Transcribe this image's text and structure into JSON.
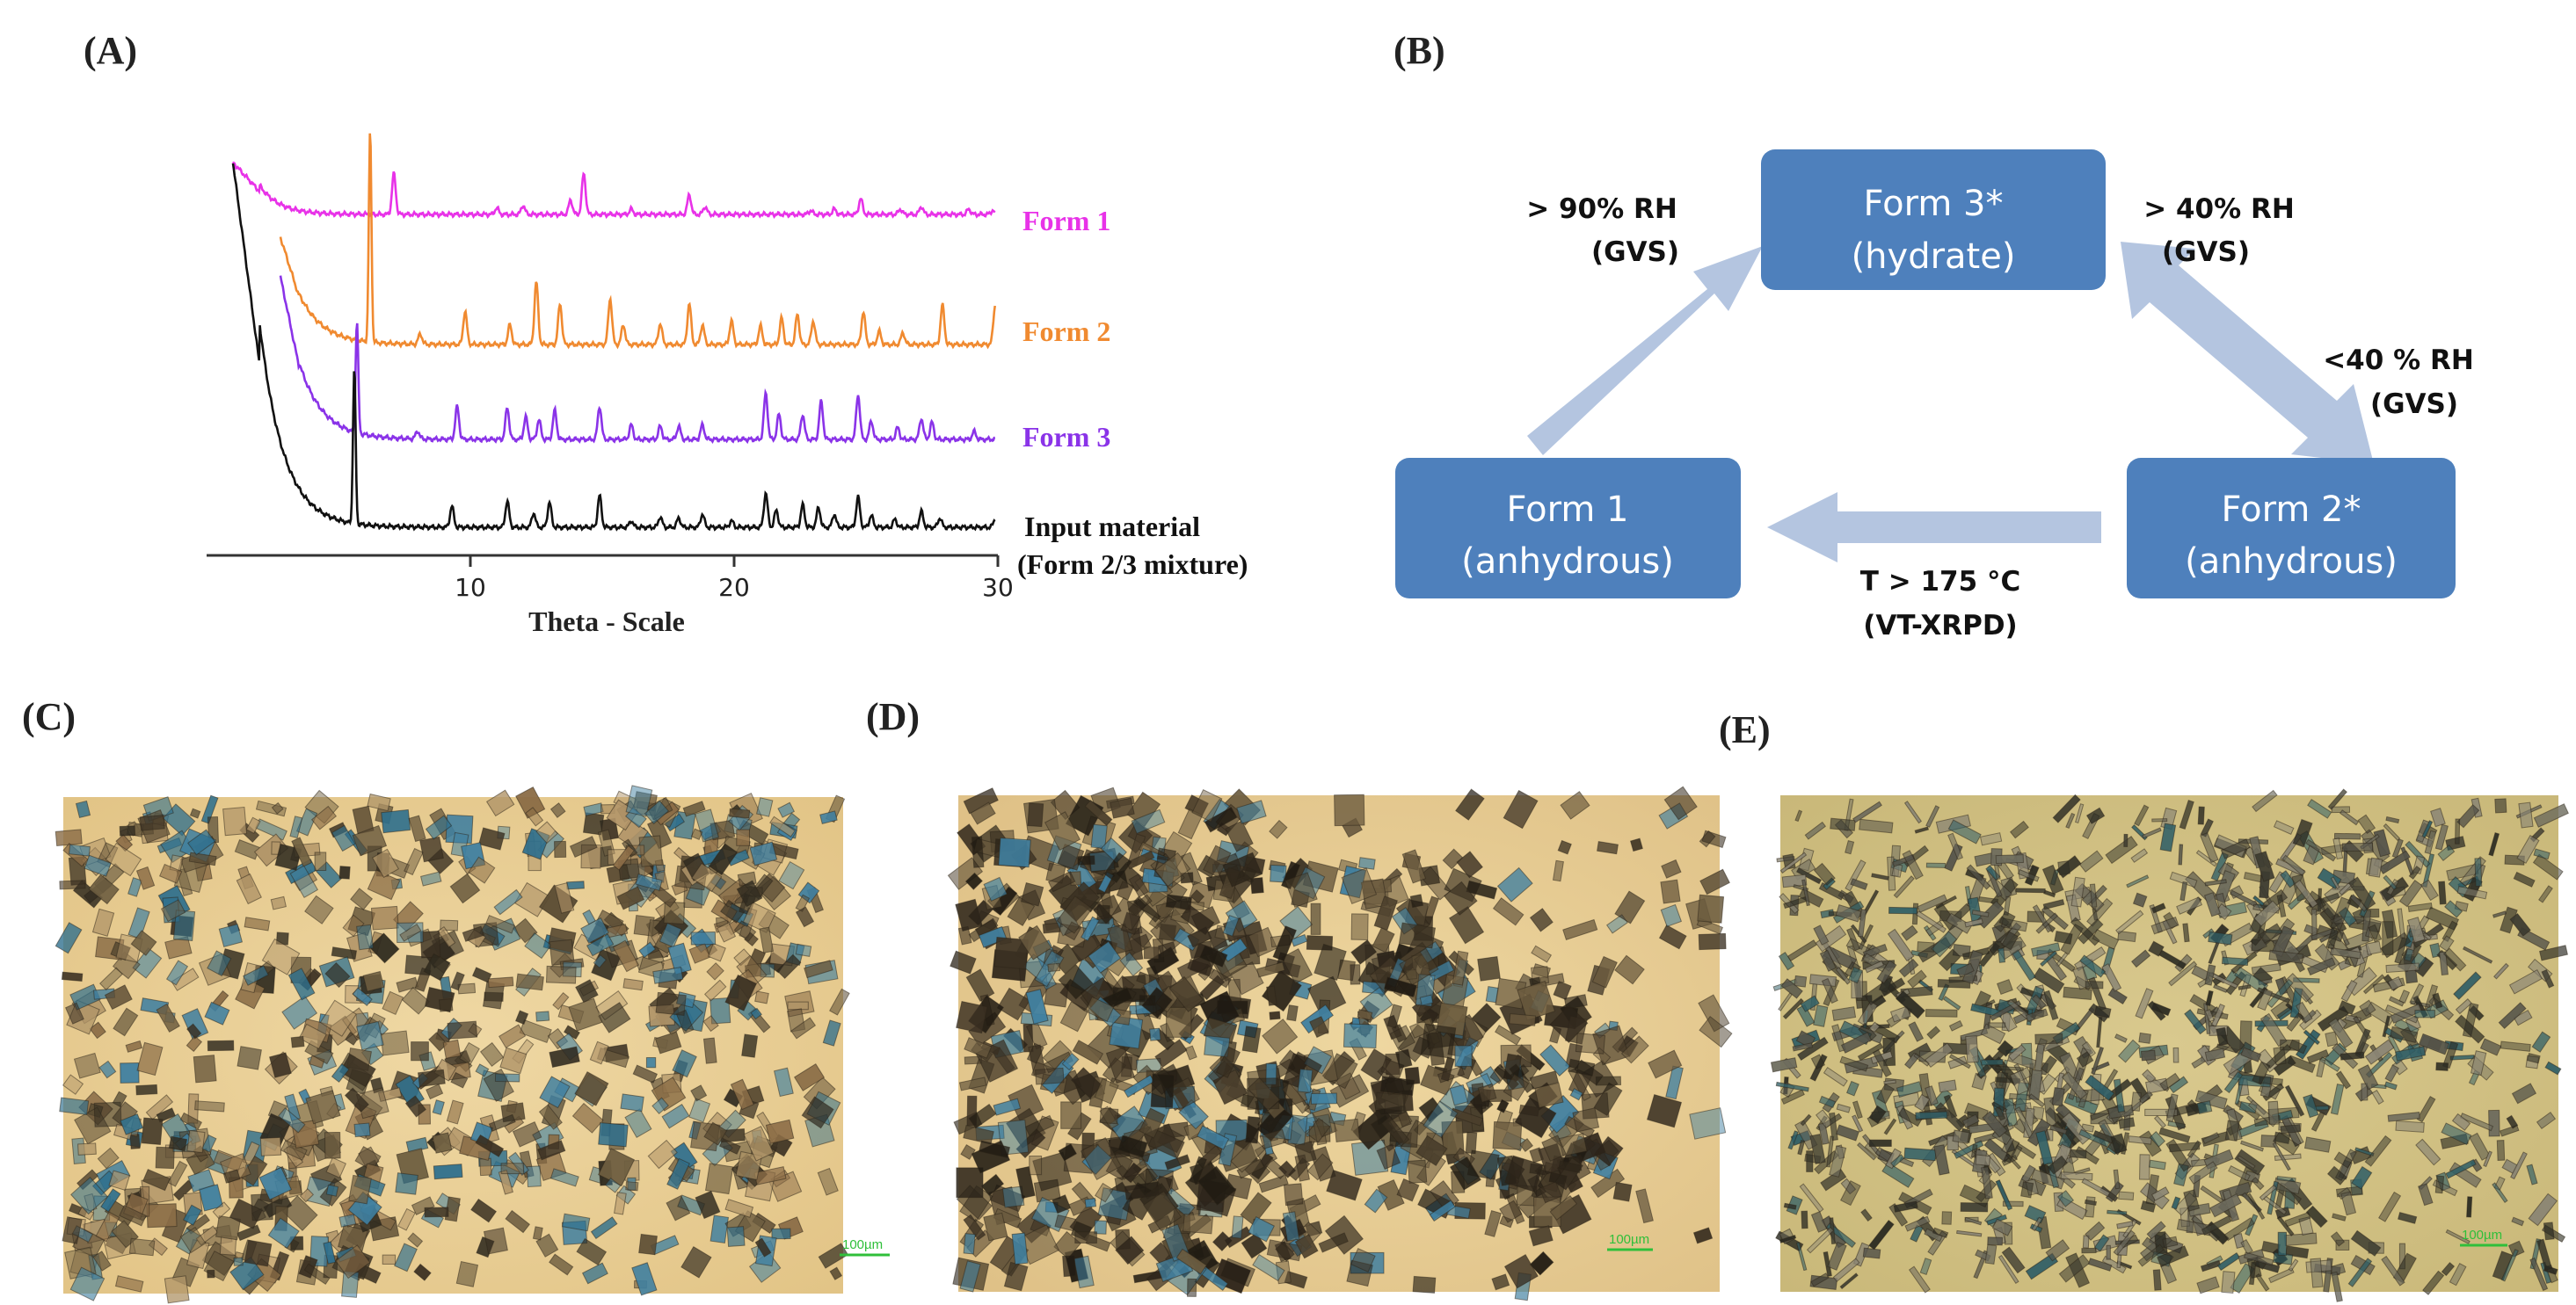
{
  "panels": {
    "a": "(A)",
    "b": "(B)",
    "c": "(C)",
    "d": "(D)",
    "e": "(E)"
  },
  "chart_data": {
    "type": "line",
    "xlabel": "Theta - Scale",
    "xlim": [
      0,
      30
    ],
    "x_ticks": [
      "10",
      "20",
      "30"
    ],
    "tick_values": [
      10,
      20,
      30
    ],
    "series": [
      {
        "name": "Form 1",
        "color": "#e832e8",
        "peaks": [
          [
            7.1,
            0.62
          ],
          [
            11.0,
            0.1
          ],
          [
            12.0,
            0.14
          ],
          [
            13.8,
            0.22
          ],
          [
            14.3,
            0.62
          ],
          [
            16.1,
            0.08
          ],
          [
            18.3,
            0.3
          ],
          [
            18.9,
            0.12
          ],
          [
            22.9,
            0.06
          ],
          [
            23.8,
            0.08
          ],
          [
            24.8,
            0.24
          ],
          [
            26.3,
            0.08
          ],
          [
            27.1,
            0.12
          ],
          [
            28.9,
            0.08
          ],
          [
            29.8,
            0.06
          ]
        ]
      },
      {
        "name": "Form 2",
        "color": "#f08a30",
        "peaks": [
          [
            6.2,
            3.2
          ],
          [
            8.1,
            0.16
          ],
          [
            9.8,
            0.5
          ],
          [
            11.5,
            0.3
          ],
          [
            12.5,
            0.95
          ],
          [
            13.4,
            0.62
          ],
          [
            15.3,
            0.7
          ],
          [
            15.8,
            0.3
          ],
          [
            17.2,
            0.32
          ],
          [
            18.3,
            0.62
          ],
          [
            18.8,
            0.3
          ],
          [
            19.9,
            0.36
          ],
          [
            21.0,
            0.28
          ],
          [
            21.8,
            0.4
          ],
          [
            22.4,
            0.46
          ],
          [
            23.0,
            0.36
          ],
          [
            24.9,
            0.5
          ],
          [
            25.5,
            0.2
          ],
          [
            26.4,
            0.18
          ],
          [
            27.9,
            0.6
          ],
          [
            29.9,
            0.6
          ]
        ]
      },
      {
        "name": "Form 3",
        "color": "#8a33e8",
        "peaks": [
          [
            5.7,
            1.7
          ],
          [
            8.0,
            0.12
          ],
          [
            9.5,
            0.5
          ],
          [
            11.4,
            0.48
          ],
          [
            12.1,
            0.34
          ],
          [
            12.6,
            0.3
          ],
          [
            13.2,
            0.44
          ],
          [
            14.9,
            0.5
          ],
          [
            16.1,
            0.22
          ],
          [
            17.2,
            0.2
          ],
          [
            17.9,
            0.2
          ],
          [
            18.8,
            0.22
          ],
          [
            21.2,
            0.7
          ],
          [
            21.7,
            0.38
          ],
          [
            22.6,
            0.38
          ],
          [
            23.3,
            0.58
          ],
          [
            24.7,
            0.68
          ],
          [
            25.2,
            0.28
          ],
          [
            26.2,
            0.18
          ],
          [
            27.1,
            0.32
          ],
          [
            27.5,
            0.26
          ],
          [
            29.1,
            0.12
          ]
        ]
      },
      {
        "name": "Input material",
        "name_line2": "(Form 2/3 mixture)",
        "color": "#111111",
        "peaks": [
          [
            5.6,
            2.35
          ],
          [
            9.3,
            0.32
          ],
          [
            11.4,
            0.4
          ],
          [
            12.4,
            0.22
          ],
          [
            13.0,
            0.38
          ],
          [
            14.9,
            0.48
          ],
          [
            16.1,
            0.1
          ],
          [
            17.2,
            0.16
          ],
          [
            17.9,
            0.14
          ],
          [
            18.8,
            0.2
          ],
          [
            19.9,
            0.1
          ],
          [
            21.2,
            0.52
          ],
          [
            21.6,
            0.26
          ],
          [
            22.6,
            0.34
          ],
          [
            23.2,
            0.3
          ],
          [
            23.8,
            0.2
          ],
          [
            24.7,
            0.46
          ],
          [
            25.2,
            0.18
          ],
          [
            26.1,
            0.12
          ],
          [
            27.1,
            0.24
          ],
          [
            27.8,
            0.14
          ],
          [
            29.9,
            0.12
          ]
        ]
      }
    ]
  },
  "diagram": {
    "form3": {
      "line1": "Form 3*",
      "line2": "(hydrate)"
    },
    "form1": {
      "line1": "Form 1",
      "line2": "(anhydrous)"
    },
    "form2": {
      "line1": "Form 2*",
      "line2": "(anhydrous)"
    },
    "edge_1_to_3": {
      "line1": "> 90% RH",
      "line2": "(GVS)"
    },
    "edge_2_to_3": {
      "line1": "> 40% RH",
      "line2": "(GVS)"
    },
    "edge_3_to_2": {
      "line1": "<40 % RH",
      "line2": "(GVS)"
    },
    "edge_2_to_1": {
      "line1": "T > 175 °C",
      "line2": "(VT-XRPD)"
    },
    "box_color": "#4e80bc",
    "arrow_color": "#b4c5e0"
  },
  "micrographs": {
    "c": {
      "scale_label": "100µm"
    },
    "d": {
      "scale_label": "100µm"
    },
    "e": {
      "scale_label": "100µm"
    }
  }
}
